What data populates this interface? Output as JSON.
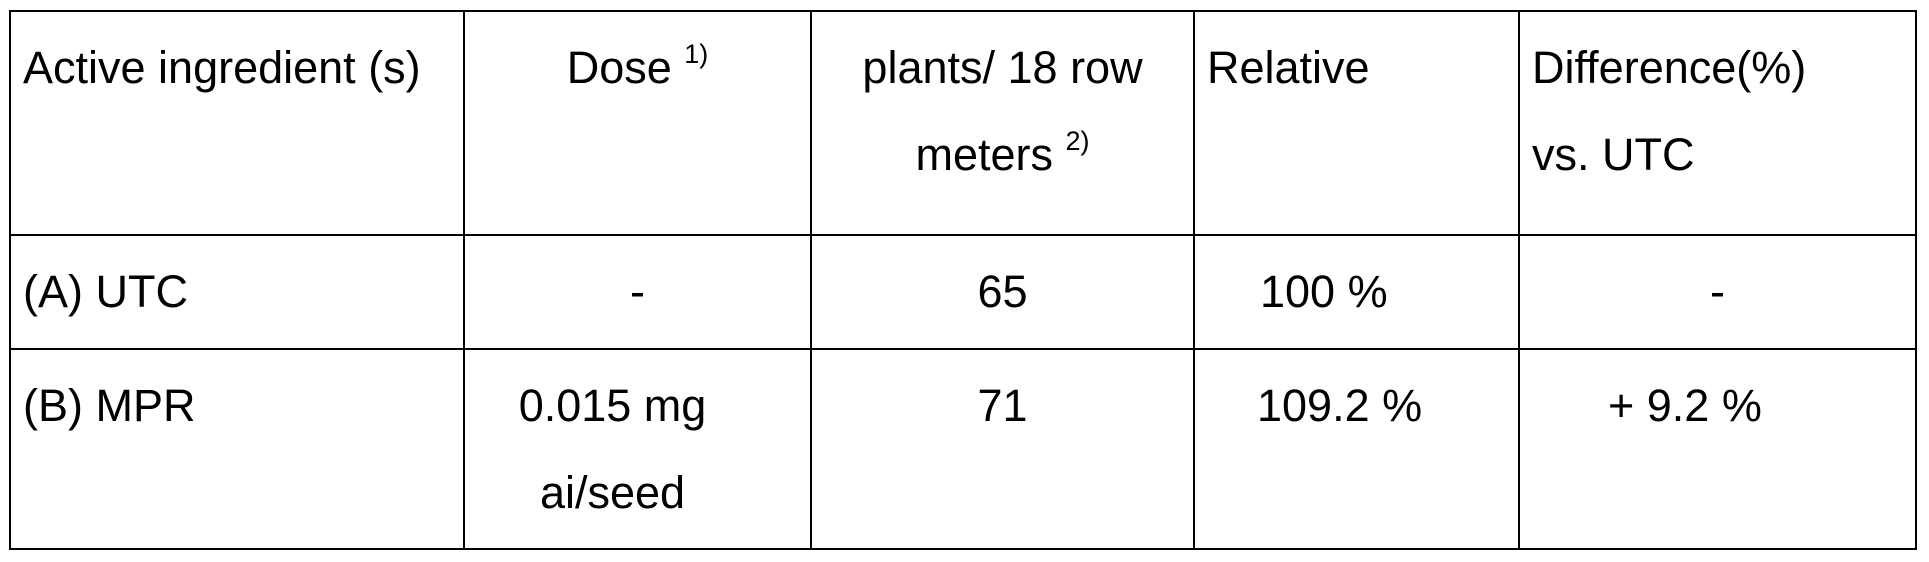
{
  "table": {
    "header": {
      "col1": "Active ingredient (s)",
      "col2_text": "Dose",
      "col2_sup": "1)",
      "col3_text": "plants/ 18 row meters",
      "col3_sup": "2)",
      "col4": "Relative",
      "col5_line1": "Difference(%)",
      "col5_line2": "vs. UTC"
    },
    "rows": [
      {
        "active": "(A) UTC",
        "dose": "-",
        "plants": "65",
        "relative": "100 %",
        "difference": "-"
      },
      {
        "active": "(B) MPR",
        "dose": "0.015 mg ai/seed",
        "plants": "71",
        "relative": "109.2 %",
        "difference": "+ 9.2 %"
      }
    ]
  }
}
